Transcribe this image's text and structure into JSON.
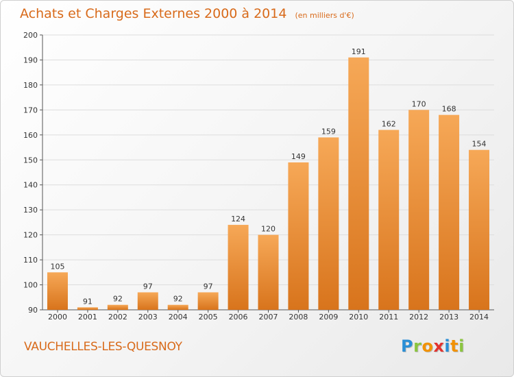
{
  "header": {
    "title": "Achats et Charges Externes 2000 à 2014",
    "unit": "(en milliers d'€)"
  },
  "footer": {
    "commune": "VAUCHELLES-LES-QUESNOY",
    "logo_letters": [
      "P",
      "r",
      "o",
      "x",
      "i",
      "t",
      "i"
    ],
    "logo_colors": [
      "#2a8fd6",
      "#8bc53f",
      "#f29200",
      "#e2332f",
      "#2a8fd6",
      "#f29200",
      "#8bc53f"
    ]
  },
  "chart_data": {
    "type": "bar",
    "categories": [
      "2000",
      "2001",
      "2002",
      "2003",
      "2004",
      "2005",
      "2006",
      "2007",
      "2008",
      "2009",
      "2010",
      "2011",
      "2012",
      "2013",
      "2014"
    ],
    "values": [
      105,
      91,
      92,
      97,
      92,
      97,
      124,
      120,
      149,
      159,
      191,
      162,
      170,
      168,
      154
    ],
    "ylim": [
      90,
      200
    ],
    "yticks": [
      90,
      100,
      110,
      120,
      130,
      140,
      150,
      160,
      170,
      180,
      190,
      200
    ],
    "grid": true,
    "bar_color_light": "#f6a857",
    "bar_color_dark": "#d8741c",
    "text_color": "#d86a1a"
  }
}
